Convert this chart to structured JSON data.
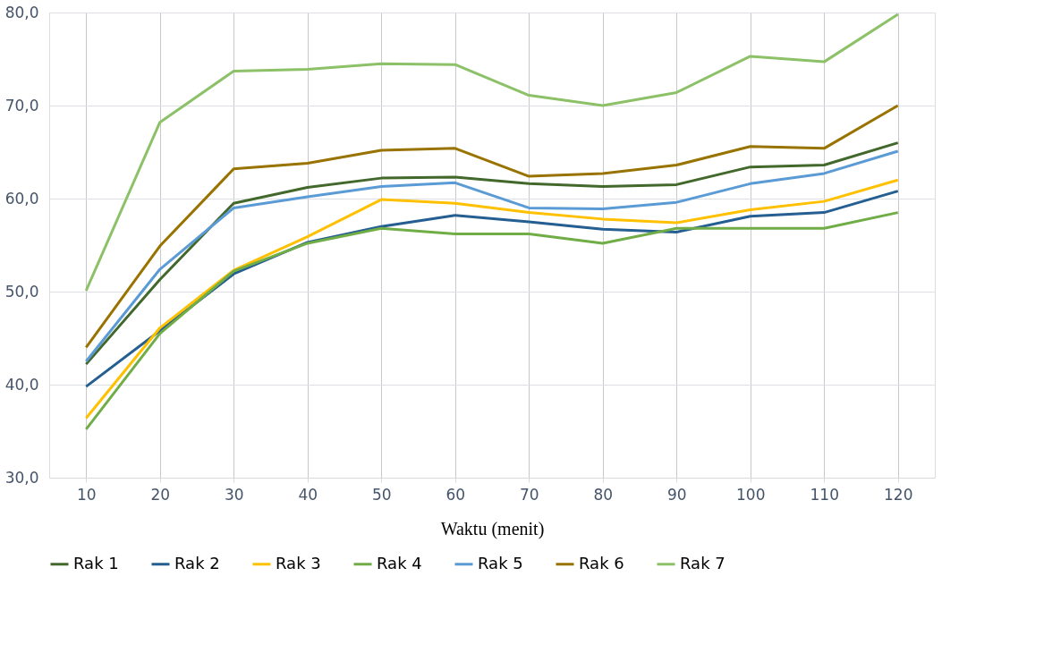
{
  "chart_data": {
    "type": "line",
    "xlabel": "Waktu (menit)",
    "categories": [
      "10",
      "20",
      "30",
      "40",
      "50",
      "60",
      "70",
      "80",
      "90",
      "100",
      "110",
      "120"
    ],
    "ylim": [
      30,
      80
    ],
    "yticks": [
      {
        "value": 30,
        "label": "30,0"
      },
      {
        "value": 40,
        "label": "40,0"
      },
      {
        "value": 50,
        "label": "50,0"
      },
      {
        "value": 60,
        "label": "60,0"
      },
      {
        "value": 70,
        "label": "70,0"
      },
      {
        "value": 80,
        "label": "80,0"
      }
    ],
    "grid": true,
    "legend": "bottom",
    "marker": "none",
    "line_style": "solid",
    "series": [
      {
        "name": "Rak 1",
        "color": "#43682b",
        "values": [
          42.2,
          51.3,
          59.5,
          61.2,
          62.2,
          62.3,
          61.6,
          61.3,
          61.5,
          63.4,
          63.6,
          66.0
        ]
      },
      {
        "name": "Rak 2",
        "color": "#255e91",
        "values": [
          39.8,
          45.8,
          51.9,
          55.3,
          57.0,
          58.2,
          57.5,
          56.7,
          56.4,
          58.1,
          58.5,
          60.8
        ]
      },
      {
        "name": "Rak 3",
        "color": "#ffc000",
        "values": [
          36.4,
          46.1,
          52.3,
          55.9,
          59.9,
          59.5,
          58.5,
          57.8,
          57.4,
          58.8,
          59.7,
          62.0
        ]
      },
      {
        "name": "Rak 4",
        "color": "#70ad47",
        "values": [
          35.2,
          45.5,
          52.2,
          55.2,
          56.8,
          56.2,
          56.2,
          55.2,
          56.8,
          56.8,
          56.8,
          58.5
        ]
      },
      {
        "name": "Rak 5",
        "color": "#5b9bd5",
        "values": [
          42.5,
          52.4,
          59.0,
          60.2,
          61.3,
          61.7,
          59.0,
          58.9,
          59.6,
          61.6,
          62.7,
          65.1
        ]
      },
      {
        "name": "Rak 6",
        "color": "#997300",
        "values": [
          44.0,
          54.9,
          63.2,
          63.8,
          65.2,
          65.4,
          62.4,
          62.7,
          63.6,
          65.6,
          65.4,
          70.0
        ]
      },
      {
        "name": "Rak 7",
        "color": "#8cc168",
        "values": [
          50.1,
          68.2,
          73.7,
          73.9,
          74.5,
          74.4,
          71.1,
          70.0,
          71.4,
          75.3,
          74.7,
          79.8
        ]
      }
    ]
  }
}
